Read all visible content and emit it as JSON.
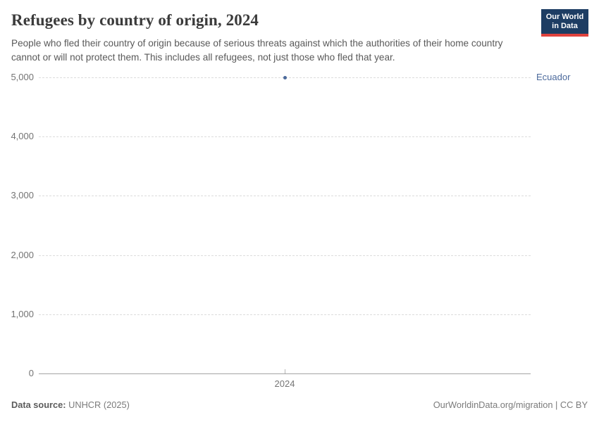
{
  "header": {
    "title": "Refugees by country of origin, 2024",
    "subtitle": "People who fled their country of origin because of serious threats against which the authorities of their home country cannot or will not protect them. This includes all refugees, not just those who fled that year."
  },
  "logo": {
    "line1": "Our World",
    "line2": "in Data",
    "background_color": "#1d3d63",
    "accent_color": "#e0423d"
  },
  "chart_data": {
    "type": "scatter",
    "title": "Refugees by country of origin, 2024",
    "series": [
      {
        "name": "Ecuador",
        "color": "#4c6a9c",
        "points": [
          {
            "x": 2024,
            "y": 5000
          }
        ]
      }
    ],
    "xlabel": "",
    "ylabel": "",
    "xlim": [
      2023.5,
      2024.5
    ],
    "ylim": [
      0,
      5000
    ],
    "xticks": [
      2024
    ],
    "yticks": [
      0,
      1000,
      2000,
      3000,
      4000,
      5000
    ],
    "grid": true,
    "gridline_style": "dashed",
    "legend_position": "right-of-point"
  },
  "footer": {
    "source_label": "Data source:",
    "source_value": " UNHCR (2025)",
    "right_text": "OurWorldinData.org/migration | CC BY"
  }
}
